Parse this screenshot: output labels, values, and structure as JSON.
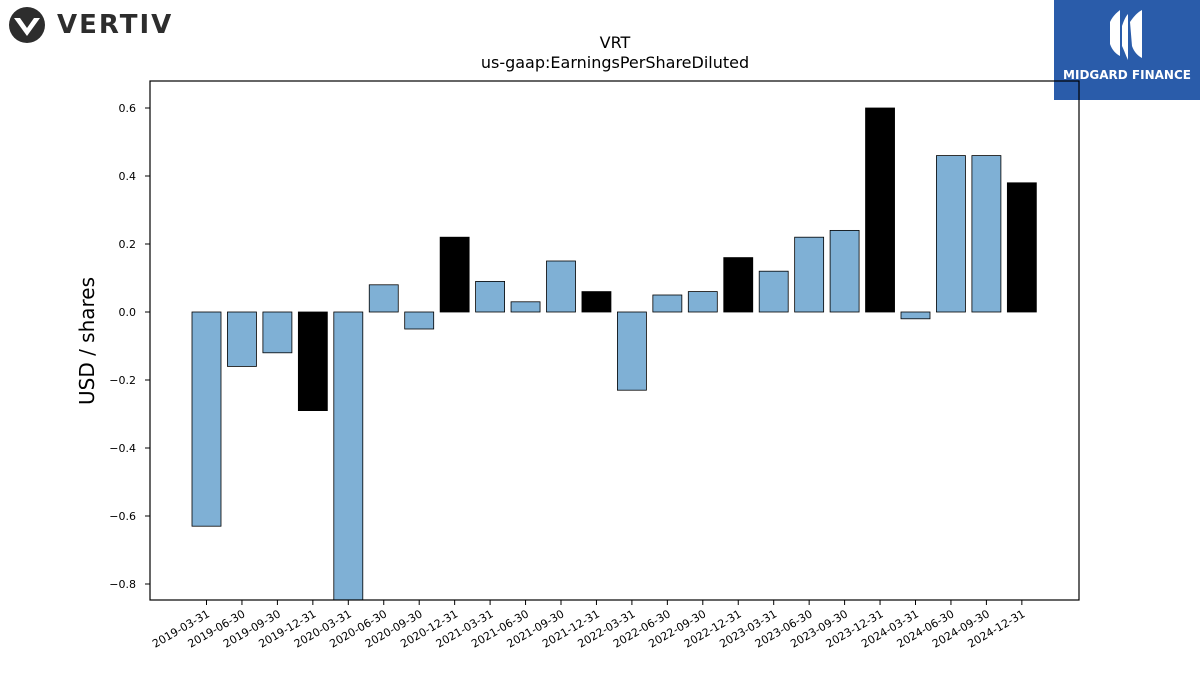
{
  "header": {
    "company_logo": {
      "icon": "vertiv-logo-icon",
      "text": "VERTIV",
      "color": "#2d2d2d"
    },
    "brand_logo": {
      "icon": "midgard-logo-icon",
      "text": "MIDGARD FINANCE",
      "background": "#2a5caa"
    }
  },
  "chart_data": {
    "type": "bar",
    "title": "VRT",
    "subtitle": "us-gaap:EarningsPerShareDiluted",
    "xlabel": "",
    "ylabel": "USD / shares",
    "ylim": [
      -0.85,
      0.68
    ],
    "yticks": [
      -0.8,
      -0.6,
      -0.4,
      -0.2,
      0.0,
      0.2,
      0.4,
      0.6
    ],
    "grid": false,
    "colors": {
      "quarter": "#7fb0d5",
      "year_end": "#000000"
    },
    "categories": [
      "2019-03-31",
      "2019-06-30",
      "2019-09-30",
      "2019-12-31",
      "2020-03-31",
      "2020-06-30",
      "2020-09-30",
      "2020-12-31",
      "2021-03-31",
      "2021-06-30",
      "2021-09-30",
      "2021-12-31",
      "2022-03-31",
      "2022-06-30",
      "2022-09-30",
      "2022-12-31",
      "2023-03-31",
      "2023-06-30",
      "2023-09-30",
      "2023-12-31",
      "2024-03-31",
      "2024-06-30",
      "2024-09-30",
      "2024-12-31"
    ],
    "values": [
      -0.63,
      -0.16,
      -0.12,
      -0.29,
      -0.85,
      0.08,
      -0.05,
      0.22,
      0.09,
      0.03,
      0.15,
      0.06,
      -0.23,
      0.05,
      0.06,
      0.16,
      0.12,
      0.22,
      0.24,
      0.6,
      -0.02,
      0.46,
      0.46,
      0.38
    ],
    "year_end": [
      false,
      false,
      false,
      true,
      false,
      false,
      false,
      true,
      false,
      false,
      false,
      true,
      false,
      false,
      false,
      true,
      false,
      false,
      false,
      true,
      false,
      false,
      false,
      true
    ]
  }
}
